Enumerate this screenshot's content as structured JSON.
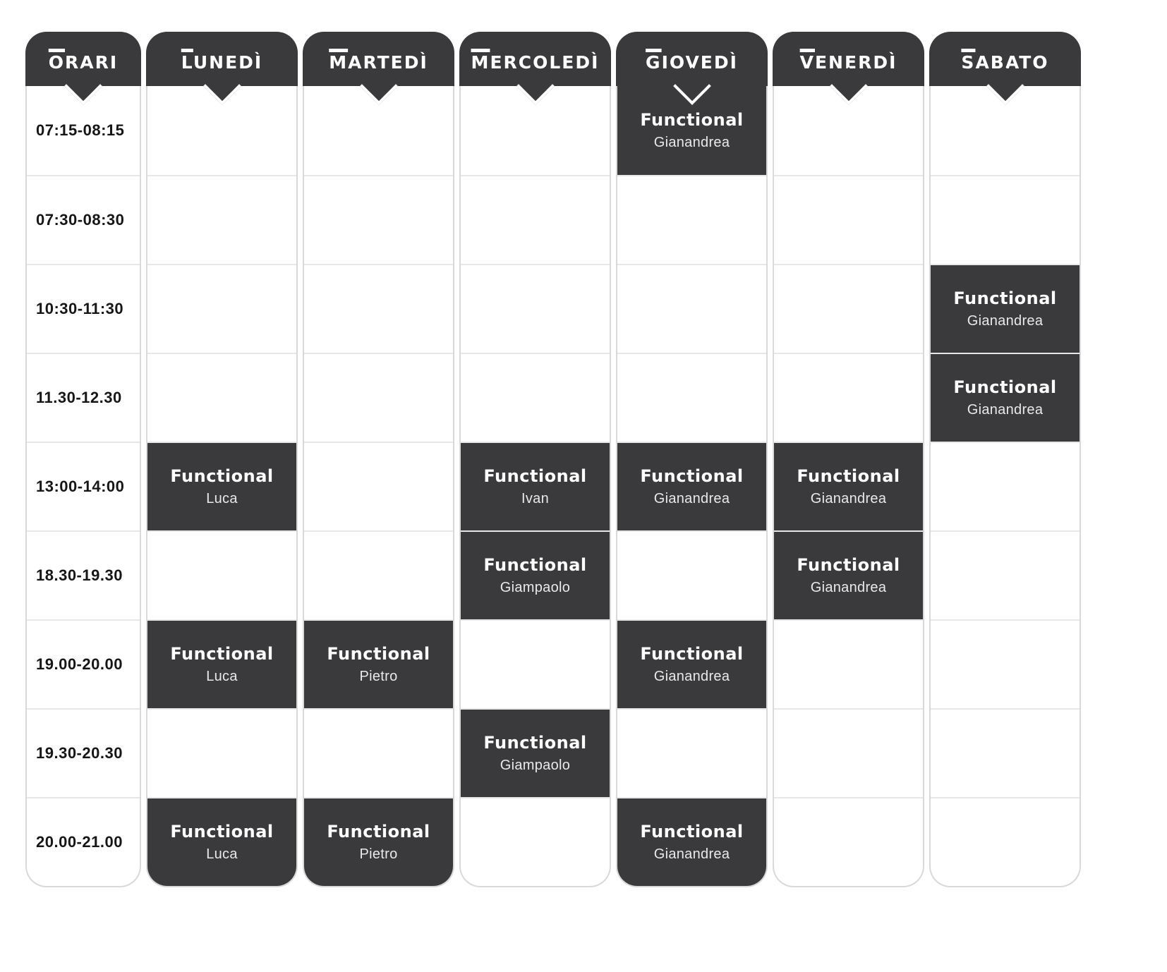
{
  "schedule": {
    "columns": [
      {
        "key": "orari",
        "label": "ORARI"
      },
      {
        "key": "lunedi",
        "label": "LUNEDÌ"
      },
      {
        "key": "martedi",
        "label": "MARTEDÌ"
      },
      {
        "key": "mercoledi",
        "label": "MERCOLEDÌ"
      },
      {
        "key": "giovedi",
        "label": "GIOVEDÌ"
      },
      {
        "key": "venerdi",
        "label": "VENERDÌ"
      },
      {
        "key": "sabato",
        "label": "SABATO"
      }
    ],
    "times": [
      "07:15-08:15",
      "07:30-08:30",
      "10:30-11:30",
      "11.30-12.30",
      "13:00-14:00",
      "18.30-19.30",
      "19.00-20.00",
      "19.30-20.30",
      "20.00-21.00"
    ],
    "cells": {
      "lunedi": [
        null,
        null,
        null,
        null,
        {
          "title": "Functional",
          "name": "Luca"
        },
        null,
        {
          "title": "Functional",
          "name": "Luca"
        },
        null,
        {
          "title": "Functional",
          "name": "Luca"
        }
      ],
      "martedi": [
        null,
        null,
        null,
        null,
        null,
        null,
        {
          "title": "Functional",
          "name": "Pietro"
        },
        null,
        {
          "title": "Functional",
          "name": "Pietro"
        }
      ],
      "mercoledi": [
        null,
        null,
        null,
        null,
        {
          "title": "Functional",
          "name": "Ivan"
        },
        {
          "title": "Functional",
          "name": "Giampaolo"
        },
        null,
        {
          "title": "Functional",
          "name": "Giampaolo"
        },
        null
      ],
      "giovedi": [
        {
          "title": "Functional",
          "name": "Gianandrea"
        },
        null,
        null,
        null,
        {
          "title": "Functional",
          "name": "Gianandrea"
        },
        null,
        {
          "title": "Functional",
          "name": "Gianandrea"
        },
        null,
        {
          "title": "Functional",
          "name": "Gianandrea"
        }
      ],
      "venerdi": [
        null,
        null,
        null,
        null,
        {
          "title": "Functional",
          "name": "Gianandrea"
        },
        {
          "title": "Functional",
          "name": "Gianandrea"
        },
        null,
        null,
        null
      ],
      "sabato": [
        null,
        null,
        {
          "title": "Functional",
          "name": "Gianandrea"
        },
        {
          "title": "Functional",
          "name": "Gianandrea"
        },
        null,
        null,
        null,
        null,
        null
      ]
    }
  },
  "colors": {
    "dark": "#3a3a3c",
    "line": "#e7e7e7",
    "border": "#d9d9d9",
    "bg": "#ffffff",
    "time_text": "#161616",
    "trainer_text": "#e9e9e9"
  }
}
